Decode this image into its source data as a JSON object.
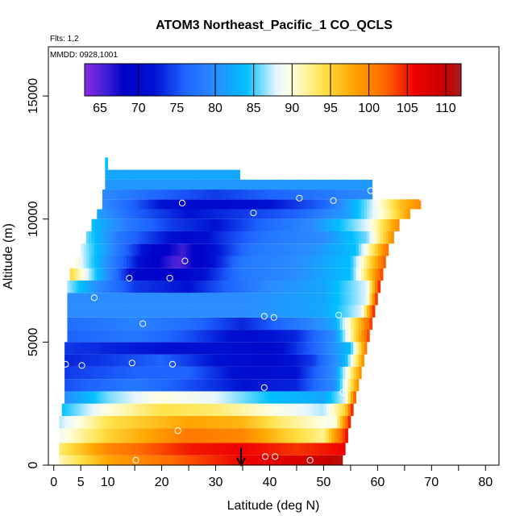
{
  "chart_data": {
    "type": "heatmap",
    "title": "ATOM3 Northeast_Pacific_1 CO_QCLS",
    "flights_label": "Flts: 1,2",
    "dates_label": "MMDD: 0928,1001",
    "xlabel": "Latitude (deg N)",
    "ylabel": "Altitude (m)",
    "xlim": [
      0,
      84
    ],
    "ylim": [
      0,
      17000
    ],
    "x_ticks": [
      0,
      10,
      20,
      30,
      40,
      50,
      60,
      70,
      80
    ],
    "x_tick_labels": [
      "0",
      "10",
      "20",
      "30",
      "40",
      "50",
      "60",
      "70",
      "80"
    ],
    "x_extra_tick": {
      "value": 5,
      "label": "5"
    },
    "y_ticks": [
      0,
      5000,
      10000,
      15000
    ],
    "y_tick_labels": [
      "0",
      "5000",
      "10000",
      "15000"
    ],
    "colorbar": {
      "min": 63,
      "max": 112,
      "ticks": [
        65,
        70,
        75,
        80,
        85,
        90,
        95,
        100,
        105,
        110
      ],
      "tick_labels": [
        "65",
        "70",
        "75",
        "80",
        "85",
        "90",
        "95",
        "100",
        "105",
        "110"
      ],
      "dividers": [
        70,
        80,
        85,
        90,
        95,
        100,
        105,
        110
      ],
      "stops": [
        {
          "v": 63,
          "c": "#8a2be2"
        },
        {
          "v": 66,
          "c": "#3a1fd6"
        },
        {
          "v": 68,
          "c": "#0000c8"
        },
        {
          "v": 72,
          "c": "#0010d0"
        },
        {
          "v": 76,
          "c": "#1e64ff"
        },
        {
          "v": 80,
          "c": "#2a8cff"
        },
        {
          "v": 84,
          "c": "#00c0ff"
        },
        {
          "v": 88,
          "c": "#e8f6ff"
        },
        {
          "v": 90,
          "c": "#ffffe0"
        },
        {
          "v": 94,
          "c": "#ffe34a"
        },
        {
          "v": 98,
          "c": "#ffa500"
        },
        {
          "v": 102,
          "c": "#ff6a00"
        },
        {
          "v": 106,
          "c": "#ee0000"
        },
        {
          "v": 110,
          "c": "#c80000"
        },
        {
          "v": 112,
          "c": "#a52020"
        }
      ]
    },
    "rows": [
      {
        "y0": 0,
        "y1": 400,
        "x0": 1.0,
        "x1": 53.5,
        "knots": [
          [
            1,
            91
          ],
          [
            10,
            98
          ],
          [
            25,
            103
          ],
          [
            35,
            106
          ],
          [
            45,
            108
          ],
          [
            53.5,
            111
          ]
        ]
      },
      {
        "y0": 400,
        "y1": 900,
        "x0": 1.0,
        "x1": 54.0,
        "knots": [
          [
            1,
            93
          ],
          [
            10,
            100
          ],
          [
            25,
            105
          ],
          [
            35,
            106
          ],
          [
            45,
            104
          ],
          [
            54,
            106
          ]
        ]
      },
      {
        "y0": 900,
        "y1": 1500,
        "x0": 1.0,
        "x1": 54.5,
        "knots": [
          [
            1,
            89
          ],
          [
            10,
            95
          ],
          [
            25,
            101
          ],
          [
            35,
            100
          ],
          [
            42,
            96
          ],
          [
            50,
            92
          ],
          [
            54.5,
            106
          ]
        ]
      },
      {
        "y0": 1500,
        "y1": 2000,
        "x0": 1.0,
        "x1": 55.0,
        "knots": [
          [
            1,
            87
          ],
          [
            10,
            94
          ],
          [
            25,
            98
          ],
          [
            35,
            97
          ],
          [
            42,
            93
          ],
          [
            52,
            89
          ],
          [
            55,
            106
          ]
        ]
      },
      {
        "y0": 2000,
        "y1": 2500,
        "x0": 1.5,
        "x1": 55.5,
        "knots": [
          [
            1.5,
            84
          ],
          [
            10,
            90
          ],
          [
            20,
            94
          ],
          [
            30,
            93
          ],
          [
            40,
            90
          ],
          [
            50,
            87
          ],
          [
            54,
            95
          ],
          [
            55.5,
            106
          ]
        ]
      },
      {
        "y0": 2500,
        "y1": 3000,
        "x0": 2.0,
        "x1": 56.0,
        "knots": [
          [
            2,
            80
          ],
          [
            10,
            86
          ],
          [
            20,
            90
          ],
          [
            30,
            88
          ],
          [
            40,
            84
          ],
          [
            50,
            82
          ],
          [
            54,
            88
          ],
          [
            56,
            104
          ]
        ]
      },
      {
        "y0": 3000,
        "y1": 3500,
        "x0": 2.0,
        "x1": 56.5,
        "knots": [
          [
            2,
            75
          ],
          [
            15,
            78
          ],
          [
            25,
            75
          ],
          [
            35,
            72
          ],
          [
            45,
            73
          ],
          [
            52,
            80
          ],
          [
            56.5,
            100
          ]
        ]
      },
      {
        "y0": 3500,
        "y1": 4000,
        "x0": 2.0,
        "x1": 57.0,
        "knots": [
          [
            2,
            74
          ],
          [
            15,
            76
          ],
          [
            25,
            76
          ],
          [
            35,
            71
          ],
          [
            45,
            72
          ],
          [
            52,
            80
          ],
          [
            57,
            100
          ]
        ]
      },
      {
        "y0": 4000,
        "y1": 4500,
        "x0": 2.0,
        "x1": 57.5,
        "knots": [
          [
            2,
            73
          ],
          [
            10,
            74
          ],
          [
            20,
            76
          ],
          [
            30,
            72
          ],
          [
            40,
            70
          ],
          [
            48,
            74
          ],
          [
            54,
            83
          ],
          [
            57.5,
            100
          ]
        ]
      },
      {
        "y0": 4500,
        "y1": 5000,
        "x0": 2.0,
        "x1": 58.0,
        "knots": [
          [
            2,
            74
          ],
          [
            10,
            73
          ],
          [
            20,
            72
          ],
          [
            30,
            72
          ],
          [
            40,
            70
          ],
          [
            48,
            76
          ],
          [
            55,
            84
          ],
          [
            58,
            102
          ]
        ]
      },
      {
        "y0": 5000,
        "y1": 5500,
        "x0": 2.5,
        "x1": 58.5,
        "knots": [
          [
            2.5,
            76
          ],
          [
            15,
            78
          ],
          [
            25,
            75
          ],
          [
            35,
            71
          ],
          [
            45,
            73
          ],
          [
            52,
            80
          ],
          [
            58.5,
            104
          ]
        ]
      },
      {
        "y0": 5500,
        "y1": 6000,
        "x0": 2.5,
        "x1": 59.0,
        "knots": [
          [
            2.5,
            77
          ],
          [
            15,
            79
          ],
          [
            25,
            77
          ],
          [
            35,
            73
          ],
          [
            45,
            78
          ],
          [
            52,
            82
          ],
          [
            59,
            104
          ]
        ]
      },
      {
        "y0": 6000,
        "y1": 6500,
        "x0": 2.5,
        "x1": 59.5,
        "knots": [
          [
            2.5,
            80
          ],
          [
            20,
            80
          ],
          [
            35,
            80
          ],
          [
            50,
            82
          ],
          [
            57,
            88
          ],
          [
            59.5,
            106
          ]
        ]
      },
      {
        "y0": 6500,
        "y1": 7000,
        "x0": 2.5,
        "x1": 60.0,
        "knots": [
          [
            2.5,
            80
          ],
          [
            20,
            80
          ],
          [
            35,
            80
          ],
          [
            50,
            82
          ],
          [
            58,
            88
          ],
          [
            60,
            106
          ]
        ]
      },
      {
        "y0": 7000,
        "y1": 7500,
        "x0": 2.5,
        "x1": 60.5,
        "knots": [
          [
            2.5,
            87
          ],
          [
            8,
            80
          ],
          [
            15,
            74
          ],
          [
            25,
            72
          ],
          [
            32,
            76
          ],
          [
            40,
            80
          ],
          [
            50,
            82
          ],
          [
            58,
            88
          ],
          [
            60.5,
            106
          ]
        ]
      },
      {
        "y0": 7500,
        "y1": 8000,
        "x0": 3.0,
        "x1": 61.0,
        "knots": [
          [
            3,
            95
          ],
          [
            8,
            84
          ],
          [
            15,
            70
          ],
          [
            22,
            68
          ],
          [
            28,
            72
          ],
          [
            35,
            78
          ],
          [
            45,
            80
          ],
          [
            55,
            84
          ],
          [
            61,
            104
          ]
        ]
      },
      {
        "y0": 8000,
        "y1": 8500,
        "x0": 4.0,
        "x1": 61.5,
        "knots": [
          [
            4,
            90
          ],
          [
            10,
            80
          ],
          [
            17,
            70
          ],
          [
            23,
            65
          ],
          [
            28,
            70
          ],
          [
            35,
            78
          ],
          [
            45,
            80
          ],
          [
            55,
            84
          ],
          [
            61.5,
            103
          ]
        ]
      },
      {
        "y0": 8500,
        "y1": 9000,
        "x0": 5.0,
        "x1": 62.0,
        "knots": [
          [
            5,
            88
          ],
          [
            12,
            78
          ],
          [
            18,
            70
          ],
          [
            24,
            66
          ],
          [
            30,
            72
          ],
          [
            37,
            78
          ],
          [
            47,
            80
          ],
          [
            56,
            84
          ],
          [
            62,
            102
          ]
        ]
      },
      {
        "y0": 9000,
        "y1": 9500,
        "x0": 6.0,
        "x1": 63.0,
        "knots": [
          [
            6,
            86
          ],
          [
            12,
            78
          ],
          [
            18,
            74
          ],
          [
            25,
            70
          ],
          [
            32,
            74
          ],
          [
            40,
            78
          ],
          [
            50,
            80
          ],
          [
            58,
            86
          ],
          [
            63,
            100
          ]
        ]
      },
      {
        "y0": 9500,
        "y1": 10000,
        "x0": 7.0,
        "x1": 64.0,
        "knots": [
          [
            7,
            84
          ],
          [
            14,
            78
          ],
          [
            22,
            74
          ],
          [
            30,
            72
          ],
          [
            38,
            76
          ],
          [
            48,
            80
          ],
          [
            58,
            88
          ],
          [
            64,
            100
          ]
        ]
      },
      {
        "y0": 10000,
        "y1": 10400,
        "x0": 8.0,
        "x1": 66.0,
        "knots": [
          [
            8,
            82
          ],
          [
            15,
            76
          ],
          [
            25,
            72
          ],
          [
            35,
            74
          ],
          [
            45,
            76
          ],
          [
            55,
            82
          ],
          [
            62,
            92
          ],
          [
            66,
            99
          ]
        ]
      },
      {
        "y0": 10400,
        "y1": 10800,
        "x0": 9.0,
        "x1": 68.0,
        "knots": [
          [
            9,
            80
          ],
          [
            20,
            72
          ],
          [
            30,
            70
          ],
          [
            40,
            72
          ],
          [
            50,
            76
          ],
          [
            58,
            86
          ],
          [
            64,
            96
          ],
          [
            68,
            100
          ]
        ]
      },
      {
        "y0": 10800,
        "y1": 11200,
        "x0": 9.0,
        "x1": 59.0,
        "knots": [
          [
            9,
            80
          ],
          [
            20,
            76
          ],
          [
            30,
            74
          ],
          [
            40,
            76
          ],
          [
            50,
            78
          ],
          [
            59,
            80
          ]
        ]
      },
      {
        "y0": 11200,
        "y1": 11600,
        "x0": 9.5,
        "x1": 59.0,
        "knots": [
          [
            9.5,
            81
          ],
          [
            30,
            81
          ],
          [
            59,
            81
          ]
        ]
      },
      {
        "y0": 11600,
        "y1": 12000,
        "x0": 9.5,
        "x1": 34.5,
        "knots": [
          [
            9.5,
            82
          ],
          [
            34.5,
            82
          ]
        ]
      },
      {
        "y0": 12000,
        "y1": 12500,
        "x0": 9.5,
        "x1": 10.0,
        "knots": [
          [
            9.5,
            84
          ],
          [
            10,
            84
          ]
        ]
      }
    ],
    "samples": [
      [
        15.2,
        200
      ],
      [
        39.2,
        350
      ],
      [
        41.0,
        350
      ],
      [
        47.5,
        200
      ],
      [
        23.0,
        1400
      ],
      [
        53.5,
        2950
      ],
      [
        39.0,
        3150
      ],
      [
        2.2,
        4100
      ],
      [
        5.2,
        4050
      ],
      [
        14.5,
        4150
      ],
      [
        22.0,
        4100
      ],
      [
        16.5,
        5750
      ],
      [
        39.0,
        6050
      ],
      [
        40.8,
        6000
      ],
      [
        52.8,
        6100
      ],
      [
        7.5,
        6800
      ],
      [
        14.0,
        7600
      ],
      [
        21.5,
        7600
      ],
      [
        24.3,
        8300
      ],
      [
        37.0,
        10250
      ],
      [
        23.8,
        10650
      ],
      [
        45.5,
        10850
      ],
      [
        51.8,
        10750
      ],
      [
        58.7,
        11150
      ],
      [
        68.3,
        10850
      ]
    ],
    "arrow": {
      "x": 34.7,
      "y_top": 700,
      "y_bottom": 0
    }
  }
}
